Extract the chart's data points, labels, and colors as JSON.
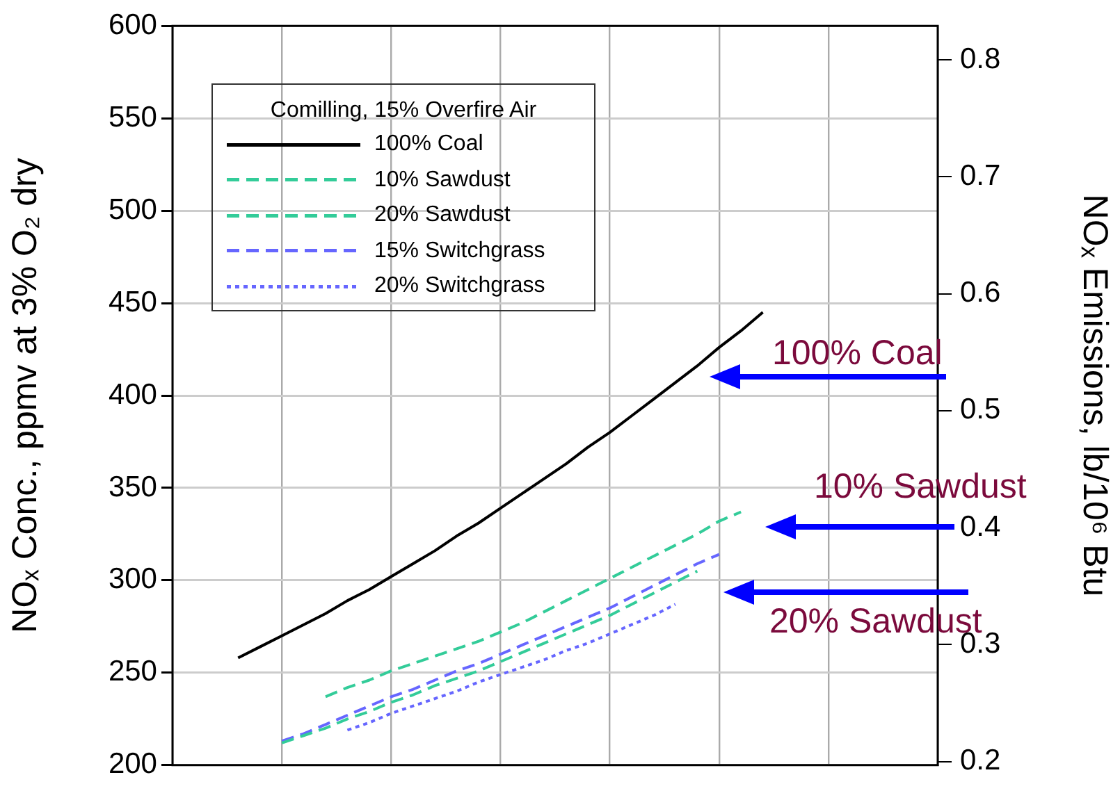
{
  "chart_data": {
    "type": "line",
    "ylabel": "NOₓ Conc., ppmv at 3% O₂ dry",
    "y2label": "NOₓ Emissions, lb/10⁶ Btu",
    "legend_title": "Comilling, 15% Overfire Air",
    "categories": [
      null,
      null,
      null,
      null,
      null,
      null,
      null,
      null,
      null,
      null,
      null,
      null,
      null,
      null,
      null,
      null,
      null,
      null,
      null,
      null,
      null,
      null,
      null,
      null,
      null,
      null,
      null,
      null,
      null,
      null,
      null,
      null,
      null,
      null,
      null,
      null
    ],
    "series": [
      {
        "name": "100% Coal",
        "color": "#000000",
        "line_style": "solid",
        "values": [
          null,
          null,
          null,
          258,
          264,
          270,
          276,
          282,
          289,
          295,
          302,
          309,
          316,
          324,
          331,
          339,
          347,
          355,
          363,
          372,
          380,
          389,
          398,
          407,
          416,
          426,
          435,
          445,
          null,
          null,
          null,
          null,
          null,
          null,
          null,
          null
        ]
      },
      {
        "name": "10% Sawdust",
        "color": "#33cc99",
        "line_style": "dashed",
        "values": [
          null,
          null,
          null,
          null,
          null,
          null,
          null,
          237,
          242,
          246,
          251,
          255,
          259,
          263,
          267,
          272,
          277,
          283,
          289,
          295,
          301,
          307,
          313,
          319,
          325,
          332,
          337,
          null,
          null,
          null,
          null,
          null,
          null,
          null,
          null,
          null
        ]
      },
      {
        "name": "20% Sawdust",
        "color": "#33cc99",
        "line_style": "dashed",
        "values": [
          null,
          null,
          null,
          null,
          null,
          212,
          216,
          220,
          225,
          229,
          234,
          238,
          243,
          247,
          251,
          256,
          261,
          266,
          271,
          276,
          281,
          287,
          293,
          299,
          305,
          null,
          null,
          null,
          null,
          null,
          null,
          null,
          null,
          null,
          null,
          null
        ]
      },
      {
        "name": "15% Switchgrass",
        "color": "#6666ff",
        "line_style": "dashed",
        "values": [
          null,
          null,
          null,
          null,
          null,
          213,
          217,
          222,
          227,
          232,
          237,
          241,
          246,
          251,
          255,
          260,
          265,
          270,
          275,
          280,
          285,
          291,
          297,
          303,
          309,
          314,
          null,
          null,
          null,
          null,
          null,
          null,
          null,
          null,
          null,
          null
        ]
      },
      {
        "name": "20% Switchgrass",
        "color": "#6666ff",
        "line_style": "dotted",
        "values": [
          null,
          null,
          null,
          null,
          null,
          null,
          null,
          null,
          219,
          223,
          228,
          232,
          236,
          240,
          245,
          249,
          253,
          257,
          262,
          266,
          271,
          276,
          281,
          287,
          null,
          null,
          null,
          null,
          null,
          null,
          null,
          null,
          null,
          null,
          null,
          null
        ]
      }
    ],
    "ylim": [
      200,
      600
    ],
    "yticks": [
      200,
      250,
      300,
      350,
      400,
      450,
      500,
      550,
      600
    ],
    "y2lim": [
      0.197,
      0.829
    ],
    "y2ticks": [
      0.2,
      0.3,
      0.4,
      0.5,
      0.6,
      0.7,
      0.8
    ],
    "grid": true,
    "legend": "top left",
    "marker": "none",
    "annotations": [
      "100% Coal",
      "10% Sawdust",
      "20% Sawdust"
    ]
  }
}
